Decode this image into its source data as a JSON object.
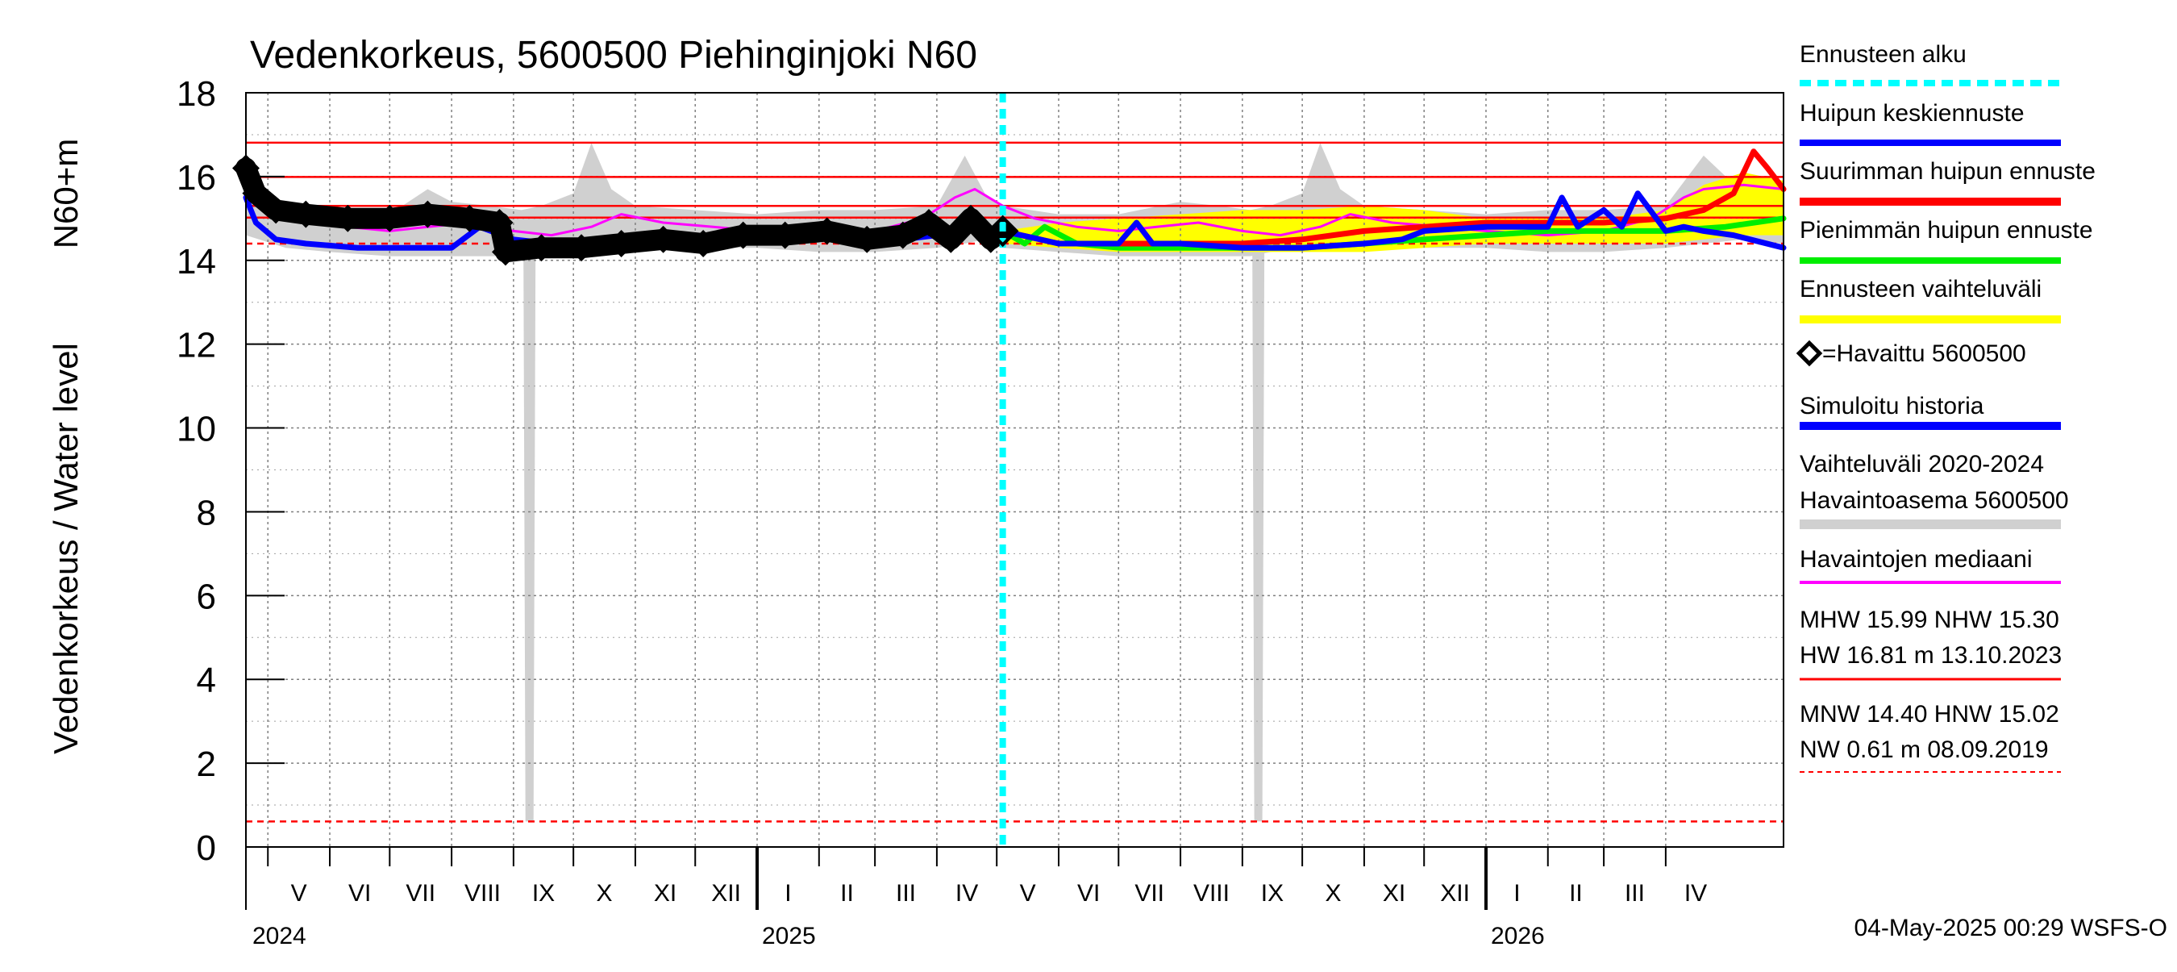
{
  "chart_data": {
    "type": "line",
    "title": "Vedenkorkeus, 5600500 Piehinginjoki N60",
    "ylabel_outer": "Vedenkorkeus / Water level",
    "ylabel_inner": "N60+m",
    "ylim": [
      0,
      18
    ],
    "yticks": [
      0,
      2,
      4,
      6,
      8,
      10,
      12,
      14,
      16,
      18
    ],
    "grid": true,
    "legend_position": "right",
    "x_start": "2024-04-20",
    "x_end": "2026-05-30",
    "forecast_start": "2025-05-04",
    "months": [
      {
        "label": "V",
        "start": "2024-05-01",
        "end": "2024-06-01"
      },
      {
        "label": "VI",
        "start": "2024-06-01",
        "end": "2024-07-01"
      },
      {
        "label": "VII",
        "start": "2024-07-01",
        "end": "2024-08-01"
      },
      {
        "label": "VIII",
        "start": "2024-08-01",
        "end": "2024-09-01"
      },
      {
        "label": "IX",
        "start": "2024-09-01",
        "end": "2024-10-01"
      },
      {
        "label": "X",
        "start": "2024-10-01",
        "end": "2024-11-01"
      },
      {
        "label": "XI",
        "start": "2024-11-01",
        "end": "2024-12-01"
      },
      {
        "label": "XII",
        "start": "2024-12-01",
        "end": "2025-01-01"
      },
      {
        "label": "I",
        "start": "2025-01-01",
        "end": "2025-02-01"
      },
      {
        "label": "II",
        "start": "2025-02-01",
        "end": "2025-03-01"
      },
      {
        "label": "III",
        "start": "2025-03-01",
        "end": "2025-04-01"
      },
      {
        "label": "IV",
        "start": "2025-04-01",
        "end": "2025-05-01"
      },
      {
        "label": "V",
        "start": "2025-05-01",
        "end": "2025-06-01"
      },
      {
        "label": "VI",
        "start": "2025-06-01",
        "end": "2025-07-01"
      },
      {
        "label": "VII",
        "start": "2025-07-01",
        "end": "2025-08-01"
      },
      {
        "label": "VIII",
        "start": "2025-08-01",
        "end": "2025-09-01"
      },
      {
        "label": "IX",
        "start": "2025-09-01",
        "end": "2025-10-01"
      },
      {
        "label": "X",
        "start": "2025-10-01",
        "end": "2025-11-01"
      },
      {
        "label": "XI",
        "start": "2025-11-01",
        "end": "2025-12-01"
      },
      {
        "label": "XII",
        "start": "2025-12-01",
        "end": "2026-01-01"
      },
      {
        "label": "I",
        "start": "2026-01-01",
        "end": "2026-02-01"
      },
      {
        "label": "II",
        "start": "2026-02-01",
        "end": "2026-03-01"
      },
      {
        "label": "III",
        "start": "2026-03-01",
        "end": "2026-04-01"
      },
      {
        "label": "IV",
        "start": "2026-04-01",
        "end": "2026-05-01"
      }
    ],
    "years": [
      {
        "label": "2024",
        "date": "2024-04-20"
      },
      {
        "label": "2025",
        "date": "2025-01-01"
      },
      {
        "label": "2026",
        "date": "2026-01-01"
      }
    ],
    "reference_lines": [
      {
        "name": "HW",
        "value": 16.81,
        "color": "#ff0000",
        "style": "solid"
      },
      {
        "name": "MHW",
        "value": 15.99,
        "color": "#ff0000",
        "style": "solid"
      },
      {
        "name": "NHW",
        "value": 15.3,
        "color": "#ff0000",
        "style": "solid"
      },
      {
        "name": "HNW",
        "value": 15.02,
        "color": "#ff0000",
        "style": "solid"
      },
      {
        "name": "MNW",
        "value": 14.4,
        "color": "#ff0000",
        "style": "dashed"
      },
      {
        "name": "NW",
        "value": 0.61,
        "color": "#ff0000",
        "style": "dashed"
      }
    ],
    "series": [
      {
        "name": "Vaihteluväli 2020-2024 Havaintoasema 5600500",
        "kind": "band",
        "color": "#d0d0d0",
        "x": [
          "2024-04-20",
          "2024-05-10",
          "2024-06-01",
          "2024-07-01",
          "2024-07-20",
          "2024-08-01",
          "2024-08-20",
          "2024-09-05",
          "2024-09-15",
          "2024-10-01",
          "2024-10-10",
          "2024-10-20",
          "2024-11-01",
          "2024-12-01",
          "2025-01-01",
          "2025-02-01",
          "2025-03-01",
          "2025-04-01",
          "2025-04-15",
          "2025-04-25",
          "2025-05-04",
          "2025-06-01",
          "2025-07-01",
          "2025-08-01",
          "2025-08-20",
          "2025-09-05",
          "2025-09-15",
          "2025-10-01",
          "2025-10-10",
          "2025-10-20",
          "2025-11-01",
          "2025-12-01",
          "2026-01-01",
          "2026-02-01",
          "2026-03-01",
          "2026-04-01",
          "2026-04-20",
          "2026-05-10",
          "2026-05-30"
        ],
        "upper": [
          16.1,
          15.3,
          15.1,
          15.1,
          15.7,
          15.4,
          15.3,
          15.2,
          15.3,
          15.6,
          16.8,
          15.7,
          15.3,
          15.2,
          15.1,
          15.2,
          15.2,
          15.3,
          16.5,
          15.6,
          15.3,
          15.1,
          15.1,
          15.4,
          15.3,
          15.2,
          15.3,
          15.6,
          16.8,
          15.7,
          15.3,
          15.2,
          15.1,
          15.2,
          15.2,
          15.3,
          16.5,
          15.6,
          15.4
        ],
        "lower": [
          14.6,
          14.3,
          14.2,
          14.1,
          14.1,
          14.1,
          14.1,
          14.1,
          14.2,
          14.3,
          14.4,
          14.3,
          14.3,
          14.3,
          14.3,
          14.2,
          14.2,
          14.3,
          14.4,
          14.5,
          14.3,
          14.2,
          14.1,
          14.1,
          14.1,
          14.1,
          14.2,
          14.3,
          14.4,
          14.3,
          14.3,
          14.3,
          14.3,
          14.2,
          14.2,
          14.3,
          14.4,
          14.5,
          14.4
        ]
      },
      {
        "name": "Vaihteluväli 2020-2024 Havaintoasema 5600500",
        "kind": "spike",
        "color": "#d0d0d0",
        "x": [
          "2024-09-08",
          "2024-09-09",
          "2024-09-10",
          "2025-09-08",
          "2025-09-09",
          "2025-09-10"
        ],
        "y": [
          14.2,
          0.61,
          14.2,
          14.2,
          0.61,
          14.2
        ]
      },
      {
        "name": "Ennusteen vaihteluväli",
        "kind": "band",
        "color": "#ffff00",
        "x": [
          "2025-05-04",
          "2025-06-01",
          "2025-07-01",
          "2025-08-01",
          "2025-09-01",
          "2025-10-01",
          "2025-11-01",
          "2025-12-01",
          "2026-01-01",
          "2026-02-01",
          "2026-03-01",
          "2026-04-01",
          "2026-04-20",
          "2026-05-10",
          "2026-05-30"
        ],
        "upper": [
          14.7,
          14.9,
          15.0,
          15.1,
          15.2,
          15.2,
          15.3,
          15.2,
          15.0,
          15.0,
          15.0,
          15.2,
          15.8,
          16.1,
          15.9
        ],
        "lower": [
          14.4,
          14.3,
          14.2,
          14.2,
          14.2,
          14.2,
          14.2,
          14.3,
          14.4,
          14.4,
          14.4,
          14.4,
          14.5,
          14.6,
          14.6
        ]
      },
      {
        "name": "Havaintojen mediaani",
        "kind": "line",
        "color": "#ff00ff",
        "width": 3,
        "x": [
          "2024-04-20",
          "2024-05-01",
          "2024-05-20",
          "2024-06-10",
          "2024-07-01",
          "2024-07-20",
          "2024-08-10",
          "2024-09-01",
          "2024-09-20",
          "2024-10-10",
          "2024-10-25",
          "2024-11-15",
          "2024-12-10",
          "2025-01-01",
          "2025-02-01",
          "2025-03-01",
          "2025-03-25",
          "2025-04-10",
          "2025-04-20",
          "2025-05-04",
          "2025-05-20",
          "2025-06-10",
          "2025-07-01",
          "2025-07-20",
          "2025-08-10",
          "2025-09-01",
          "2025-09-20",
          "2025-10-10",
          "2025-10-25",
          "2025-11-15",
          "2025-12-10",
          "2026-01-01",
          "2026-02-01",
          "2026-03-01",
          "2026-03-25",
          "2026-04-10",
          "2026-04-20",
          "2026-05-10",
          "2026-05-30"
        ],
        "y": [
          15.9,
          15.3,
          15.0,
          14.8,
          14.7,
          14.8,
          14.9,
          14.7,
          14.6,
          14.8,
          15.1,
          14.9,
          14.8,
          14.7,
          14.6,
          14.7,
          15.0,
          15.5,
          15.7,
          15.3,
          15.0,
          14.8,
          14.7,
          14.8,
          14.9,
          14.7,
          14.6,
          14.8,
          15.1,
          14.9,
          14.8,
          14.7,
          14.6,
          14.7,
          15.0,
          15.5,
          15.7,
          15.8,
          15.7
        ]
      },
      {
        "name": "Simuloitu historia",
        "kind": "line",
        "color": "#0000ff",
        "width": 7,
        "x": [
          "2024-04-20",
          "2024-04-25",
          "2024-05-05",
          "2024-05-20",
          "2024-06-15",
          "2024-07-15",
          "2024-08-01",
          "2024-08-15",
          "2024-09-01",
          "2024-09-20",
          "2024-10-15",
          "2024-11-15",
          "2024-12-15",
          "2025-01-15",
          "2025-02-15",
          "2025-03-15",
          "2025-04-01",
          "2025-04-15",
          "2025-05-04"
        ],
        "y": [
          15.5,
          14.9,
          14.5,
          14.4,
          14.3,
          14.3,
          14.3,
          14.8,
          14.5,
          14.4,
          14.5,
          14.6,
          14.5,
          14.6,
          14.6,
          14.5,
          14.6,
          14.8,
          14.7
        ]
      },
      {
        "name": "Pienimmän huipun ennuste",
        "kind": "line",
        "color": "#00ee00",
        "width": 7,
        "x": [
          "2025-05-04",
          "2025-05-15",
          "2025-05-25",
          "2025-06-10",
          "2025-07-01",
          "2025-08-01",
          "2025-09-01",
          "2025-10-01",
          "2025-11-01",
          "2025-12-01",
          "2026-01-01",
          "2026-02-01",
          "2026-03-01",
          "2026-04-01",
          "2026-05-01",
          "2026-05-30"
        ],
        "y": [
          14.7,
          14.4,
          14.8,
          14.4,
          14.3,
          14.3,
          14.3,
          14.3,
          14.4,
          14.5,
          14.6,
          14.7,
          14.7,
          14.7,
          14.8,
          15.0
        ]
      },
      {
        "name": "Suurimman huipun ennuste",
        "kind": "line",
        "color": "#ff0000",
        "width": 7,
        "x": [
          "2025-05-04",
          "2025-06-01",
          "2025-07-01",
          "2025-08-01",
          "2025-09-01",
          "2025-10-01",
          "2025-11-01",
          "2025-12-01",
          "2026-01-01",
          "2026-02-01",
          "2026-03-01",
          "2026-04-01",
          "2026-04-20",
          "2026-05-05",
          "2026-05-15",
          "2026-05-22",
          "2026-05-30"
        ],
        "y": [
          14.7,
          14.4,
          14.4,
          14.4,
          14.4,
          14.5,
          14.7,
          14.8,
          14.9,
          14.9,
          14.9,
          15.0,
          15.2,
          15.6,
          16.6,
          16.2,
          15.7
        ]
      },
      {
        "name": "Huipun keskiennuste",
        "kind": "line",
        "color": "#0000ff",
        "width": 7,
        "x": [
          "2025-05-04",
          "2025-06-01",
          "2025-07-01",
          "2025-07-10",
          "2025-07-18",
          "2025-08-01",
          "2025-09-01",
          "2025-10-01",
          "2025-11-01",
          "2025-11-20",
          "2025-12-01",
          "2026-01-01",
          "2026-02-01",
          "2026-02-08",
          "2026-02-16",
          "2026-03-01",
          "2026-03-10",
          "2026-03-18",
          "2026-04-01",
          "2026-04-10",
          "2026-04-20",
          "2026-05-05",
          "2026-05-30"
        ],
        "y": [
          14.7,
          14.4,
          14.4,
          14.9,
          14.4,
          14.4,
          14.3,
          14.3,
          14.4,
          14.5,
          14.7,
          14.8,
          14.8,
          15.5,
          14.8,
          15.2,
          14.8,
          15.6,
          14.7,
          14.8,
          14.7,
          14.6,
          14.3
        ]
      },
      {
        "name": "Havaittu 5600500",
        "kind": "observed",
        "color": "#000000",
        "x": [
          "2024-04-20",
          "2024-04-25",
          "2024-05-05",
          "2024-05-20",
          "2024-06-10",
          "2024-07-01",
          "2024-07-20",
          "2024-08-10",
          "2024-08-25",
          "2024-08-28",
          "2024-09-15",
          "2024-10-05",
          "2024-10-25",
          "2024-11-15",
          "2024-12-05",
          "2024-12-25",
          "2025-01-15",
          "2025-02-05",
          "2025-02-25",
          "2025-03-15",
          "2025-03-28",
          "2025-04-08",
          "2025-04-18",
          "2025-04-28",
          "2025-05-04"
        ],
        "y": [
          16.2,
          15.6,
          15.2,
          15.1,
          15.0,
          15.0,
          15.1,
          15.0,
          14.9,
          14.2,
          14.3,
          14.3,
          14.4,
          14.5,
          14.4,
          14.6,
          14.6,
          14.7,
          14.5,
          14.6,
          14.9,
          14.5,
          15.0,
          14.5,
          14.7
        ]
      }
    ],
    "legend": [
      {
        "label": "Ennusteen alku",
        "color": "#00ffff",
        "style": "dashed"
      },
      {
        "label": "Huipun keskiennuste",
        "color": "#0000ff",
        "style": "solid"
      },
      {
        "label": "Suurimman huipun ennuste",
        "color": "#ff0000",
        "style": "solid"
      },
      {
        "label": "Pienimmän huipun ennuste",
        "color": "#00ee00",
        "style": "solid"
      },
      {
        "label": "Ennusteen vaihteluväli",
        "color": "#ffff00",
        "style": "solid"
      },
      {
        "label": "=Havaittu 5600500",
        "color": "#000000",
        "style": "marker"
      },
      {
        "label": "Simuloitu historia",
        "color": "#0000ff",
        "style": "solid"
      },
      {
        "label": "Vaihteluväli 2020-2024",
        "label2": " Havaintoasema 5600500",
        "color": "#d0d0d0",
        "style": "solid"
      },
      {
        "label": "Havaintojen mediaani",
        "color": "#ff00ff",
        "style": "solid"
      }
    ],
    "stats": {
      "high_line1": "MHW  15.99 NHW  15.30",
      "high_line2": "HW  16.81 m 13.10.2023",
      "low_line1": "MNW  14.40 HNW  15.02",
      "low_line2": "NW   0.61 m 08.09.2019"
    },
    "timestamp": "04-May-2025 00:29 WSFS-O"
  }
}
